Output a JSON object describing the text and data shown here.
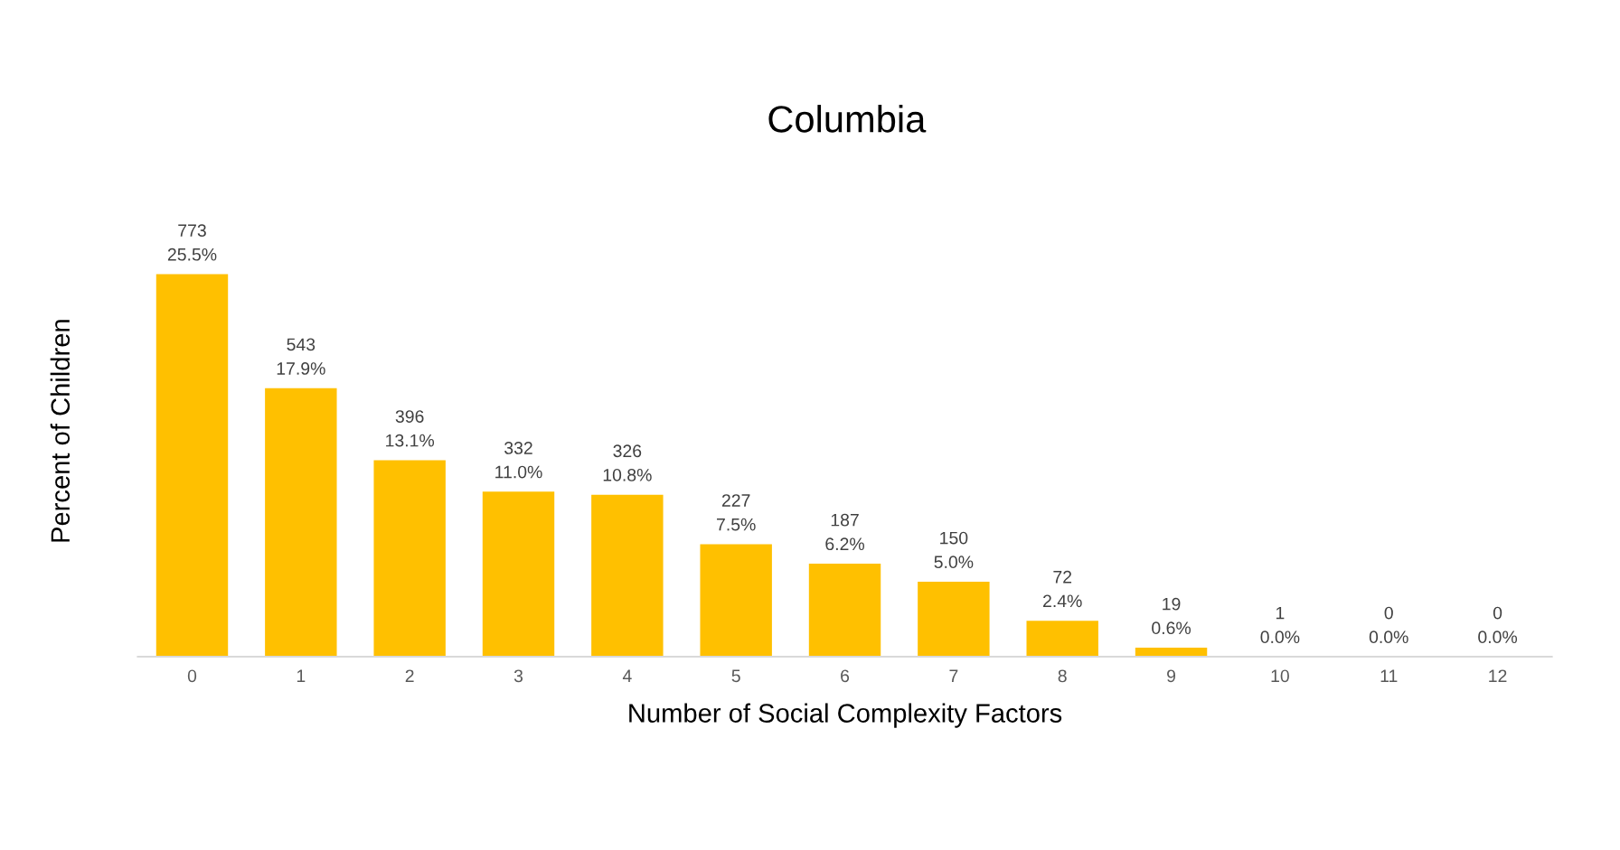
{
  "chart_data": {
    "type": "bar",
    "title": "Columbia",
    "xlabel": "Number of Social Complexity Factors",
    "ylabel": "Percent of Children",
    "categories": [
      "0",
      "1",
      "2",
      "3",
      "4",
      "5",
      "6",
      "7",
      "8",
      "9",
      "10",
      "11",
      "12"
    ],
    "values": [
      25.5,
      17.9,
      13.1,
      11.0,
      10.8,
      7.5,
      6.2,
      5.0,
      2.4,
      0.6,
      0.0,
      0.0,
      0.0
    ],
    "value_labels": [
      "773\n25.5%",
      "543\n17.9%",
      "396\n13.1%",
      "332\n11.0%",
      "326\n10.8%",
      "227\n7.5%",
      "187\n6.2%",
      "150\n5.0%",
      "72\n2.4%",
      "19\n0.6%",
      "1\n0.0%",
      "0\n0.0%",
      "0\n0.0%"
    ],
    "color": "#ffc000",
    "tick_labels": "x",
    "grid": false,
    "legend": false
  }
}
